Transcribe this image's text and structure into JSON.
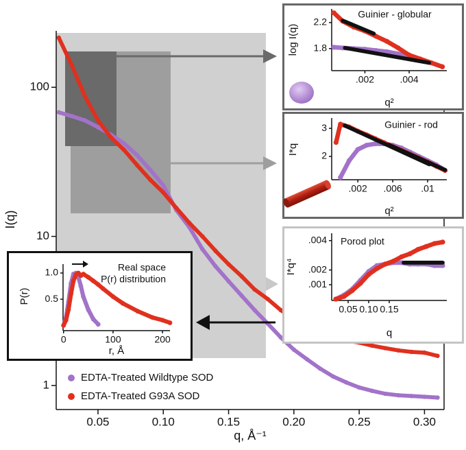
{
  "chart_data": [
    {
      "type": "scatter",
      "xlabel": "q, Å⁻¹",
      "ylabel": "I(q)",
      "log_y": true,
      "xlim": [
        0.018,
        0.315
      ],
      "ylim": [
        0.69,
        239
      ],
      "xticks": [
        0.05,
        {
          "value": 0.1,
          "label": "0.10"
        },
        0.15,
        {
          "value": 0.2,
          "label": "0.20"
        },
        0.25,
        {
          "value": 0.3,
          "label": "0.30"
        }
      ],
      "yticks": [
        1,
        10,
        100
      ],
      "legend": "lower left",
      "x": [
        0.02,
        0.03,
        0.04,
        0.05,
        0.06,
        0.07,
        0.08,
        0.09,
        0.1,
        0.11,
        0.12,
        0.13,
        0.14,
        0.15,
        0.16,
        0.17,
        0.18,
        0.19,
        0.2,
        0.21,
        0.22,
        0.23,
        0.24,
        0.25,
        0.26,
        0.27,
        0.28,
        0.29,
        0.3,
        0.31
      ],
      "series": [
        {
          "name": "EDTA-Treated Wildtype SOD",
          "color": "#a273c9",
          "values": [
            68,
            64,
            60,
            54,
            48,
            42,
            35,
            28,
            22,
            15,
            11.5,
            8.2,
            6.3,
            5,
            4,
            3.2,
            2.6,
            2.1,
            1.74,
            1.5,
            1.3,
            1.15,
            1.05,
            0.97,
            0.92,
            0.88,
            0.86,
            0.85,
            0.84,
            0.83
          ]
        },
        {
          "name": "EDTA-Treated G93A SOD",
          "color": "#e0301e",
          "values": [
            215,
            140,
            87,
            60,
            46,
            38,
            30,
            24,
            19.7,
            15.5,
            12.3,
            10,
            8,
            6.5,
            5.4,
            4.4,
            3.8,
            3.2,
            2.8,
            2.5,
            2.25,
            2.1,
            2,
            1.94,
            1.85,
            1.78,
            1.72,
            1.68,
            1.66,
            1.58
          ]
        }
      ]
    },
    {
      "type": "scatter",
      "title": "Guinier - globular",
      "xlabel": "q²",
      "ylabel": "log I(q)",
      "xlim": [
        0.0005,
        0.0057
      ],
      "ylim": [
        1.46,
        2.41
      ],
      "xticks": [
        {
          "value": 0.002,
          "label": ".002"
        },
        {
          "value": 0.004,
          "label": ".004"
        }
      ],
      "yticks": [
        1.8,
        2.2
      ],
      "x": [
        0.0006,
        0.001,
        0.0015,
        0.002,
        0.0025,
        0.003,
        0.0035,
        0.004,
        0.0045,
        0.005,
        0.0055
      ],
      "series": [
        {
          "color": "#a273c9",
          "values": [
            1.82,
            1.81,
            1.8,
            1.79,
            1.77,
            1.75,
            1.72,
            1.68,
            1.63,
            1.58,
            1.52
          ]
        },
        {
          "color": "#e0301e",
          "values": [
            2.35,
            2.22,
            2.13,
            2.07,
            1.99,
            1.91,
            1.81,
            1.7,
            1.64,
            1.58,
            1.52
          ]
        },
        {
          "color": "#111111",
          "marker": "line",
          "x": [
            0.0011,
            0.0049
          ],
          "values": [
            1.81,
            1.58
          ]
        },
        {
          "color": "#111111",
          "marker": "line",
          "x": [
            0.001,
            0.0024
          ],
          "values": [
            2.23,
            2.03
          ]
        }
      ]
    },
    {
      "type": "scatter",
      "title": "Guinier - rod",
      "xlabel": "q²",
      "ylabel": "I*q",
      "xlim": [
        -0.001,
        0.0122
      ],
      "ylim": [
        1.17,
        3.37
      ],
      "xticks": [
        {
          "value": 0.002,
          "label": ".002"
        },
        {
          "value": 0.006,
          "label": ".006"
        },
        {
          "value": 0.01,
          "label": ".01"
        }
      ],
      "yticks": [
        2,
        3
      ],
      "x": [
        -0.0005,
        0,
        0.001,
        0.002,
        0.003,
        0.004,
        0.005,
        0.006,
        0.007,
        0.008,
        0.009,
        0.01,
        0.011,
        0.012
      ],
      "series": [
        {
          "color": "#a273c9",
          "values": [
            null,
            1.25,
            1.85,
            2.25,
            2.4,
            2.45,
            2.45,
            2.4,
            2.3,
            2.15,
            2,
            1.85,
            1.7,
            1.5
          ]
        },
        {
          "color": "#e0301e",
          "values": [
            2.5,
            3.15,
            3.05,
            2.9,
            2.77,
            2.63,
            2.49,
            2.35,
            2.22,
            2.08,
            1.94,
            1.8,
            1.65,
            1.5
          ]
        },
        {
          "color": "#111111",
          "marker": "line",
          "x": [
            0.0055,
            0.012
          ],
          "values": [
            2.42,
            1.52
          ]
        },
        {
          "color": "#111111",
          "marker": "line",
          "x": [
            0.0005,
            0.0102
          ],
          "values": [
            3.1,
            1.72
          ]
        }
      ]
    },
    {
      "type": "scatter",
      "title": "Porod plot",
      "xlabel": "q",
      "ylabel": "I*q⁴",
      "xlim": [
        0.01,
        0.29
      ],
      "ylim": [
        -7e-05,
        0.0045
      ],
      "xticks": [
        0.05,
        {
          "value": 0.1,
          "label": "0.10"
        },
        0.15
      ],
      "yticks": [
        {
          "value": 0.001,
          "label": ".001"
        },
        {
          "value": 0.002,
          "label": ".002"
        },
        {
          "value": 0.004,
          "label": ".004"
        }
      ],
      "x": [
        0.02,
        0.04,
        0.06,
        0.08,
        0.1,
        0.12,
        0.14,
        0.16,
        0.18,
        0.2,
        0.22,
        0.24,
        0.26,
        0.28
      ],
      "series": [
        {
          "color": "#a273c9",
          "values": [
            2e-05,
            0.0003,
            0.0007,
            0.0013,
            0.0019,
            0.0023,
            0.0024,
            0.0025,
            0.0025,
            0.0024,
            0.0024,
            0.0024,
            0.0023,
            0.0023
          ]
        },
        {
          "color": "#e0301e",
          "values": [
            2e-05,
            0.0002,
            0.0006,
            0.0011,
            0.0017,
            0.0021,
            0.0024,
            0.0026,
            0.0029,
            0.0031,
            0.0034,
            0.0036,
            0.0038,
            0.0039
          ]
        },
        {
          "color": "#111111",
          "marker": "line",
          "x": [
            0.185,
            0.28
          ],
          "values": [
            0.0025,
            0.0025
          ]
        }
      ]
    },
    {
      "type": "scatter",
      "title_lines": [
        "Real space",
        "P(r) distribution"
      ],
      "xlabel": "r, Å",
      "ylabel": "P(r)",
      "xlim": [
        -1,
        215
      ],
      "ylim": [
        -0.1,
        1.17
      ],
      "xticks": [
        0,
        100,
        200
      ],
      "yticks": [
        {
          "value": 0.5,
          "label": "0.5"
        },
        {
          "value": 1,
          "label": "1.0"
        }
      ],
      "x": [
        0,
        5,
        10,
        15,
        20,
        25,
        30,
        35,
        40,
        50,
        60,
        70,
        80,
        100,
        120,
        150,
        180,
        200,
        215
      ],
      "series": [
        {
          "color": "#a273c9",
          "values": [
            0,
            0.15,
            0.45,
            0.8,
            0.98,
            1,
            0.92,
            0.75,
            0.55,
            0.3,
            0.12,
            0.02,
            null,
            null,
            null,
            null,
            null,
            null,
            null
          ]
        },
        {
          "color": "#e0301e",
          "values": [
            0,
            0.1,
            0.3,
            0.6,
            0.85,
            0.97,
            1,
            0.95,
            0.98,
            0.92,
            0.85,
            0.78,
            0.7,
            0.55,
            0.42,
            0.27,
            0.15,
            0.1,
            0.05
          ]
        }
      ]
    }
  ]
}
